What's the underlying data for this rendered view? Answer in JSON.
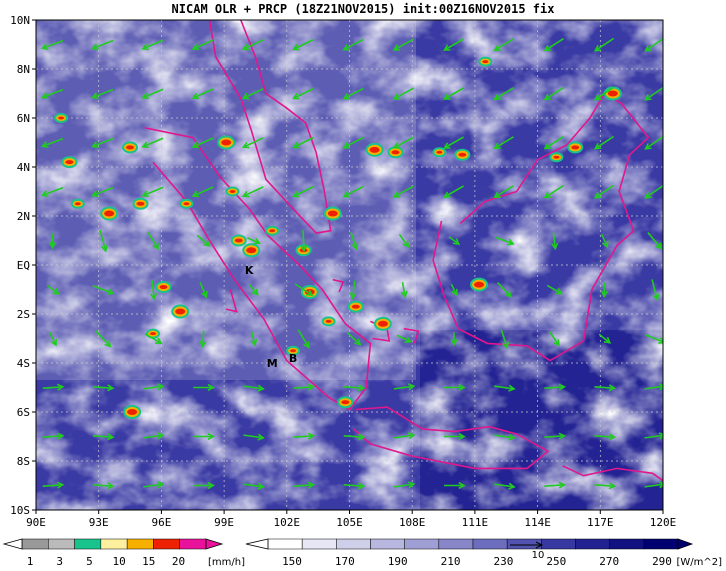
{
  "title": "NICAM OLR + PRCP (18Z21NOV2015) init:00Z16NOV2015 fix",
  "map": {
    "lat_labels": [
      "10N",
      "8N",
      "6N",
      "4N",
      "2N",
      "EQ",
      "2S",
      "4S",
      "6S",
      "8S",
      "10S"
    ],
    "lon_labels": [
      "90E",
      "93E",
      "96E",
      "99E",
      "102E",
      "105E",
      "108E",
      "111E",
      "114E",
      "117E",
      "120E"
    ],
    "stations": [
      {
        "label": "K",
        "lon": 100.2,
        "lat": -0.2
      },
      {
        "label": "B",
        "lon": 102.3,
        "lat": -3.8
      },
      {
        "label": "M",
        "lon": 101.3,
        "lat": -4.0
      }
    ]
  },
  "precip_bar": {
    "ticks": [
      "1",
      "3",
      "5",
      "10",
      "15",
      "20"
    ],
    "unit": "[mm/h]",
    "colors": [
      "#999999",
      "#bbbbbb",
      "#18c48c",
      "#fff0a0",
      "#f7b000",
      "#ee2200",
      "#e8139a"
    ]
  },
  "olr_bar": {
    "ticks": [
      "150",
      "170",
      "190",
      "210",
      "230",
      "250",
      "270",
      "290"
    ],
    "unit": "[W/m^2]",
    "vector_ref": "10",
    "colors": [
      "#ffffff",
      "#e6e6f4",
      "#cfcfea",
      "#b7b7e0",
      "#9f9fd5",
      "#8686c9",
      "#6d6dbd",
      "#5252b0",
      "#3838a2",
      "#222293",
      "#111180",
      "#000070"
    ]
  },
  "colors": {
    "coastline": "#e0188c",
    "wind_vectors": "#1fcc1f",
    "grid": "#cccccc"
  }
}
